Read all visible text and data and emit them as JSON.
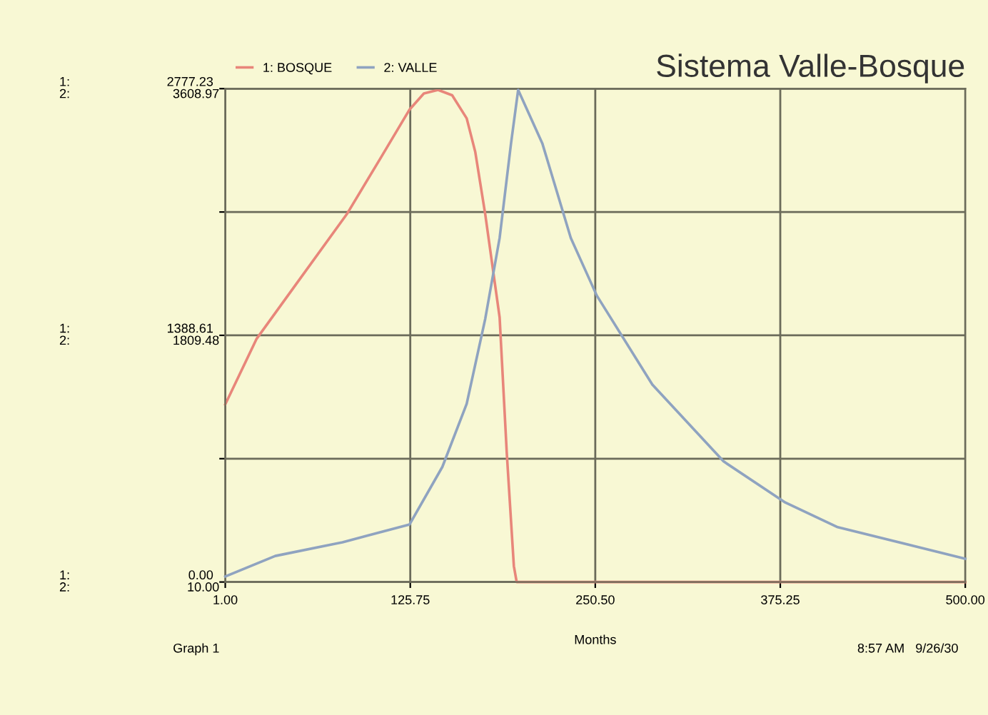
{
  "chart_data": {
    "type": "line",
    "title": "Sistema Valle-Bosque",
    "xlabel": "Months",
    "annotations": [
      "Graph 1",
      "8:57 AM   9/26/30",
      "1:",
      "2:",
      "1:",
      "2:",
      "1:",
      "2:"
    ],
    "xlim": [
      1,
      500
    ],
    "xticks": [
      {
        "value": 1,
        "label": "1.00"
      },
      {
        "value": 125.75,
        "label": "125.75"
      },
      {
        "value": 250.5,
        "label": "250.50"
      },
      {
        "value": 375.25,
        "label": "375.25"
      },
      {
        "value": 500,
        "label": "500.00"
      }
    ],
    "ylim": [
      0,
      2777.23
    ],
    "yticks": [
      {
        "value": 0,
        "label": "0.00"
      },
      {
        "value": 694.31,
        "label": null
      },
      {
        "value": 1388.61,
        "label": "1388.61"
      },
      {
        "value": 2082.92,
        "label": null
      },
      {
        "value": 2777.23,
        "label": "2777.23"
      }
    ],
    "y2lim": [
      10,
      3608.97
    ],
    "y2ticks": [
      {
        "value": 10,
        "label": "10.00"
      },
      {
        "value": 1809.48,
        "label": "1809.48"
      },
      {
        "value": 3608.97,
        "label": "3608.97"
      }
    ],
    "grid": true,
    "legend": "top left",
    "series": [
      {
        "name": "1: BOSQUE",
        "color": "#e8867a",
        "x": [
          1,
          22.2,
          48.2,
          82.9,
          106,
          125.3,
          134.9,
          144.5,
          154,
          163.8,
          169.6,
          176.3,
          186,
          190.8,
          195.6,
          197.5,
          250,
          375,
          500
        ],
        "values": [
          1000,
          1370,
          1670,
          2070,
          2390,
          2660,
          2750,
          2770,
          2740,
          2610,
          2420,
          2070,
          1490,
          730,
          90,
          0,
          0,
          0,
          0
        ]
      },
      {
        "name": "2: VALLE",
        "color": "#8fa3c0",
        "axis": "y2",
        "x": [
          1,
          34.7,
          80,
          125.3,
          147.4,
          163.8,
          176.3,
          186,
          193.7,
          198.5,
          214.8,
          234,
          251.5,
          289,
          337,
          378.6,
          414,
          500
        ],
        "values": [
          50,
          200,
          300,
          430,
          850,
          1310,
          1930,
          2520,
          3210,
          3600,
          3210,
          2520,
          2100,
          1450,
          890,
          590,
          410,
          180
        ]
      }
    ]
  }
}
